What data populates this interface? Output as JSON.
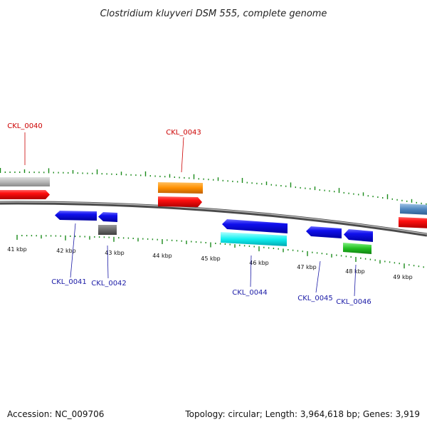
{
  "title": "Clostridium kluyveri DSM 555, complete genome",
  "footer": {
    "accession": "Accession: NC_009706",
    "topology": "Topology: circular; Length: 3,964,618 bp; Genes: 3,919"
  },
  "colors": {
    "tick_green": "#1a8a1a",
    "backbone": "#777777",
    "label_red": "#cc0000",
    "label_blue": "#1a1aa6"
  },
  "kbp_labels": [
    "41 kbp",
    "42 kbp",
    "43 kbp",
    "44 kbp",
    "45 kbp",
    "46 kbp",
    "47 kbp",
    "48 kbp",
    "49 kbp"
  ],
  "genes": [
    {
      "label": "CKL_0040",
      "strand": "+"
    },
    {
      "label": "CKL_0041",
      "strand": "-"
    },
    {
      "label": "CKL_0042",
      "strand": "-"
    },
    {
      "label": "CKL_0043",
      "strand": "+"
    },
    {
      "label": "CKL_0044",
      "strand": "-"
    },
    {
      "label": "CKL_0045",
      "strand": "-"
    },
    {
      "label": "CKL_0046",
      "strand": "-"
    }
  ]
}
